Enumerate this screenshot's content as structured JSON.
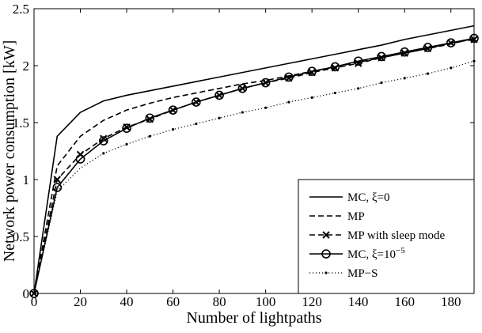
{
  "chart_data": {
    "type": "line",
    "xlabel": "Number of lightpaths",
    "ylabel": "Network power consumption [kW]",
    "xlim": [
      0,
      190
    ],
    "ylim": [
      0,
      2.5
    ],
    "xticks": [
      0,
      20,
      40,
      60,
      80,
      100,
      120,
      140,
      160,
      180
    ],
    "yticks": [
      0,
      0.5,
      1,
      1.5,
      2,
      2.5
    ],
    "grid": false,
    "legend_position": "bottom-right",
    "x": [
      0,
      10,
      20,
      30,
      40,
      50,
      60,
      70,
      80,
      90,
      100,
      110,
      120,
      130,
      140,
      150,
      160,
      170,
      180,
      190
    ],
    "series": [
      {
        "name": "MC, ξ=0",
        "legend_parts": {
          "base": "MC, ξ=0",
          "sup": ""
        },
        "style": "solid",
        "marker": "none",
        "values": [
          0,
          1.38,
          1.59,
          1.69,
          1.74,
          1.78,
          1.82,
          1.86,
          1.9,
          1.94,
          1.98,
          2.02,
          2.06,
          2.1,
          2.14,
          2.18,
          2.23,
          2.27,
          2.31,
          2.35
        ]
      },
      {
        "name": "MP",
        "legend_parts": {
          "base": "MP",
          "sup": ""
        },
        "style": "dashed",
        "marker": "none",
        "values": [
          0,
          1.12,
          1.38,
          1.52,
          1.61,
          1.67,
          1.72,
          1.76,
          1.8,
          1.84,
          1.87,
          1.91,
          1.95,
          1.99,
          2.03,
          2.07,
          2.11,
          2.15,
          2.19,
          2.24
        ]
      },
      {
        "name": "MP with sleep mode",
        "legend_parts": {
          "base": "MP with sleep mode",
          "sup": ""
        },
        "style": "dashed",
        "marker": "x",
        "values": [
          0,
          1.0,
          1.22,
          1.36,
          1.46,
          1.53,
          1.61,
          1.68,
          1.74,
          1.8,
          1.85,
          1.89,
          1.94,
          1.98,
          2.02,
          2.07,
          2.11,
          2.15,
          2.2,
          2.23
        ]
      },
      {
        "name": "MC, ξ=10−5",
        "legend_parts": {
          "base": "MC, ξ=10",
          "sup": "−5"
        },
        "style": "solid",
        "marker": "circle",
        "values": [
          0,
          0.93,
          1.18,
          1.34,
          1.45,
          1.54,
          1.61,
          1.68,
          1.74,
          1.8,
          1.85,
          1.9,
          1.95,
          1.99,
          2.04,
          2.08,
          2.12,
          2.16,
          2.2,
          2.24
        ]
      },
      {
        "name": "MP−S",
        "legend_parts": {
          "base": "MP−S",
          "sup": ""
        },
        "style": "dotted",
        "marker": "dot",
        "values": [
          0,
          0.9,
          1.1,
          1.23,
          1.31,
          1.38,
          1.44,
          1.49,
          1.54,
          1.59,
          1.63,
          1.68,
          1.72,
          1.76,
          1.8,
          1.85,
          1.89,
          1.93,
          1.98,
          2.04
        ]
      }
    ]
  }
}
